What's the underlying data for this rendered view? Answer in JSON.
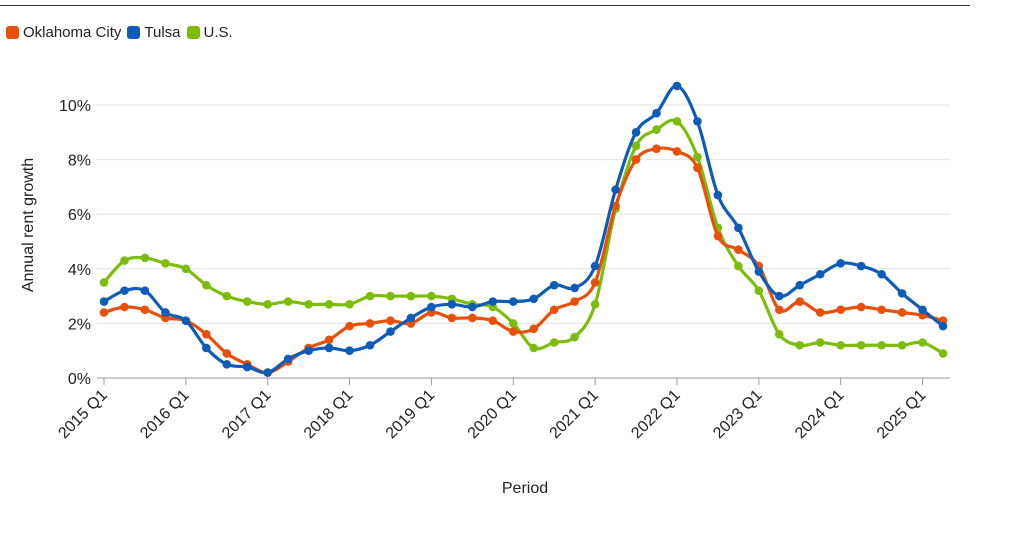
{
  "chart_data": {
    "type": "line",
    "xlabel": "Period",
    "ylabel": "Annual rent growth",
    "ylim": [
      0,
      10.5
    ],
    "yticks": [
      0,
      2,
      4,
      6,
      8,
      10
    ],
    "ytick_labels": [
      "0%",
      "2%",
      "4%",
      "6%",
      "8%",
      "10%"
    ],
    "xtick_labels": [
      "2015 Q1",
      "2016 Q1",
      "2017 Q1",
      "2018 Q1",
      "2019 Q1",
      "2020 Q1",
      "2021 Q1",
      "2022 Q1",
      "2023 Q1",
      "2024 Q1",
      "2025 Q1"
    ],
    "x": [
      "2015 Q1",
      "2015 Q2",
      "2015 Q3",
      "2015 Q4",
      "2016 Q1",
      "2016 Q2",
      "2016 Q3",
      "2016 Q4",
      "2017 Q1",
      "2017 Q2",
      "2017 Q3",
      "2017 Q4",
      "2018 Q1",
      "2018 Q2",
      "2018 Q3",
      "2018 Q4",
      "2019 Q1",
      "2019 Q2",
      "2019 Q3",
      "2019 Q4",
      "2020 Q1",
      "2020 Q2",
      "2020 Q3",
      "2020 Q4",
      "2021 Q1",
      "2021 Q2",
      "2021 Q3",
      "2021 Q4",
      "2022 Q1",
      "2022 Q2",
      "2022 Q3",
      "2022 Q4",
      "2023 Q1",
      "2023 Q2",
      "2023 Q3",
      "2023 Q4",
      "2024 Q1",
      "2024 Q2",
      "2024 Q3",
      "2024 Q4",
      "2025 Q1",
      "2025 Q2"
    ],
    "grid": "horizontal",
    "legend_position": "top-left",
    "series": [
      {
        "name": "Oklahoma City",
        "color": "#e8500a",
        "values": [
          2.4,
          2.6,
          2.5,
          2.2,
          2.1,
          1.6,
          0.9,
          0.5,
          0.2,
          0.6,
          1.1,
          1.4,
          1.9,
          2.0,
          2.1,
          2.0,
          2.4,
          2.2,
          2.2,
          2.1,
          1.7,
          1.8,
          2.5,
          2.8,
          3.5,
          6.3,
          8.0,
          8.4,
          8.3,
          7.7,
          5.2,
          4.7,
          4.1,
          2.5,
          2.8,
          2.4,
          2.5,
          2.6,
          2.5,
          2.4,
          2.3,
          2.1
        ]
      },
      {
        "name": "Tulsa",
        "color": "#0e5cb8",
        "values": [
          2.8,
          3.2,
          3.2,
          2.4,
          2.1,
          1.1,
          0.5,
          0.4,
          0.2,
          0.7,
          1.0,
          1.1,
          1.0,
          1.2,
          1.7,
          2.2,
          2.6,
          2.7,
          2.6,
          2.8,
          2.8,
          2.9,
          3.4,
          3.3,
          4.1,
          6.9,
          9.0,
          9.7,
          10.7,
          9.4,
          6.7,
          5.5,
          3.9,
          3.0,
          3.4,
          3.8,
          4.2,
          4.1,
          3.8,
          3.1,
          2.5,
          1.9
        ]
      },
      {
        "name": "U.S.",
        "color": "#7cbd0c",
        "values": [
          3.5,
          4.3,
          4.4,
          4.2,
          4.0,
          3.4,
          3.0,
          2.8,
          2.7,
          2.8,
          2.7,
          2.7,
          2.7,
          3.0,
          3.0,
          3.0,
          3.0,
          2.9,
          2.7,
          2.6,
          2.0,
          1.1,
          1.3,
          1.5,
          2.7,
          6.2,
          8.5,
          9.1,
          9.4,
          8.1,
          5.5,
          4.1,
          3.2,
          1.6,
          1.2,
          1.3,
          1.2,
          1.2,
          1.2,
          1.2,
          1.3,
          0.9
        ]
      }
    ]
  }
}
